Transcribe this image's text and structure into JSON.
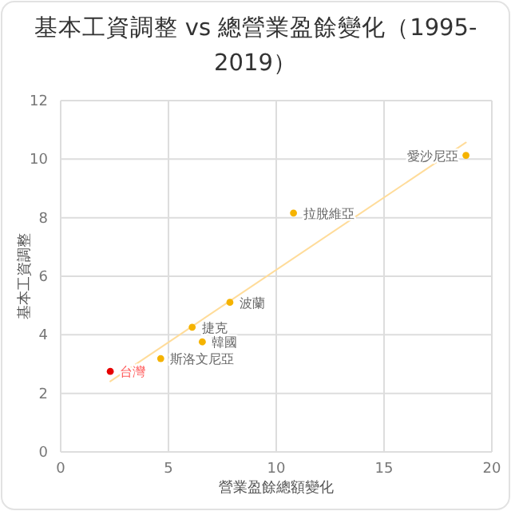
{
  "chart_data": {
    "type": "scatter",
    "title": "基本工資調整 vs 總營業盈餘變化（1995-2019）",
    "xlabel": "營業盈餘總額變化",
    "ylabel": "基本工資調整",
    "xlim": [
      0,
      20
    ],
    "xticks": [
      0,
      5,
      10,
      15,
      20
    ],
    "ylim": [
      0,
      12
    ],
    "yticks": [
      0,
      2,
      4,
      6,
      8,
      10,
      12
    ],
    "grid": true,
    "legend": false,
    "marker": "circle",
    "series": [
      {
        "name": "台灣",
        "color": "#e60000",
        "x": [
          2.3
        ],
        "values": [
          2.75
        ]
      },
      {
        "name": "斯洛文尼亞",
        "color": "#f5b300",
        "x": [
          4.64
        ],
        "values": [
          3.19
        ]
      },
      {
        "name": "捷克",
        "color": "#f5b300",
        "x": [
          6.1
        ],
        "values": [
          4.26
        ]
      },
      {
        "name": "韓國",
        "color": "#f5b300",
        "x": [
          6.57
        ],
        "values": [
          3.76
        ]
      },
      {
        "name": "波蘭",
        "color": "#f5b300",
        "x": [
          7.85
        ],
        "values": [
          5.11
        ]
      },
      {
        "name": "拉脫維亞",
        "color": "#f5b300",
        "x": [
          10.8
        ],
        "values": [
          8.16
        ]
      },
      {
        "name": "愛沙尼亞",
        "color": "#f5b300",
        "x": [
          18.8
        ],
        "values": [
          10.13
        ]
      },
      {
        "type": "line",
        "color": "#ffdc9a",
        "marker": "none",
        "line_style": "solid",
        "x": [
          2.3,
          18.8
        ],
        "values": [
          2.41,
          10.57
        ]
      }
    ]
  }
}
